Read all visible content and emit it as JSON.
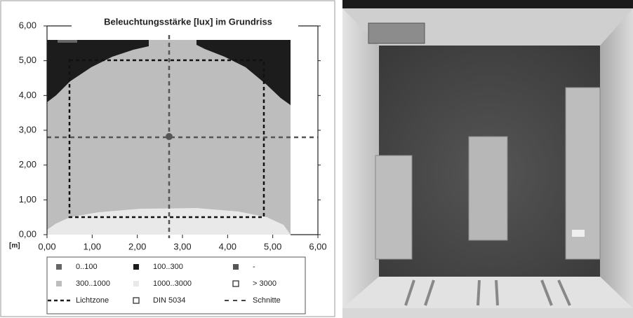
{
  "chart_data": {
    "type": "contour",
    "title": "Beleuchtungsstärke [lux] im Grundriss",
    "ylabel": "[m]",
    "xlim": [
      0,
      6
    ],
    "ylim": [
      0,
      6
    ],
    "xticks": [
      {
        "value": 0,
        "label": "0,00"
      },
      {
        "value": 1,
        "label": "1,00"
      },
      {
        "value": 2,
        "label": "2,00"
      },
      {
        "value": 3,
        "label": "3,00"
      },
      {
        "value": 4,
        "label": "4,00"
      },
      {
        "value": 5,
        "label": "5,00"
      },
      {
        "value": 6,
        "label": "6,00"
      }
    ],
    "yticks": [
      {
        "value": 0,
        "label": "0,00"
      },
      {
        "value": 1,
        "label": "1,00"
      },
      {
        "value": 2,
        "label": "2,00"
      },
      {
        "value": 3,
        "label": "3,00"
      },
      {
        "value": 4,
        "label": "4,00"
      },
      {
        "value": 5,
        "label": "5,00"
      },
      {
        "value": 6,
        "label": "6,00"
      }
    ],
    "legend": [
      {
        "name": "0..100",
        "color": "#666666",
        "marker": "square"
      },
      {
        "name": "100..300",
        "color": "#1c1c1c",
        "marker": "square"
      },
      {
        "name": "-",
        "color": "#555555",
        "marker": "square"
      },
      {
        "name": "300..1000",
        "color": "#bdbdbd",
        "marker": "square"
      },
      {
        "name": "1000..3000",
        "color": "#e9e9e9",
        "marker": "square"
      },
      {
        "name": "> 3000",
        "color": "#ffffff",
        "marker": "outline"
      },
      {
        "name": "Lichtzone",
        "color": "#1c1c1c",
        "marker": "dash"
      },
      {
        "name": "DIN 5034",
        "color": "#1c1c1c",
        "marker": "outline"
      },
      {
        "name": "Schnitte",
        "color": "#444444",
        "marker": "dash-short"
      }
    ]
  }
}
